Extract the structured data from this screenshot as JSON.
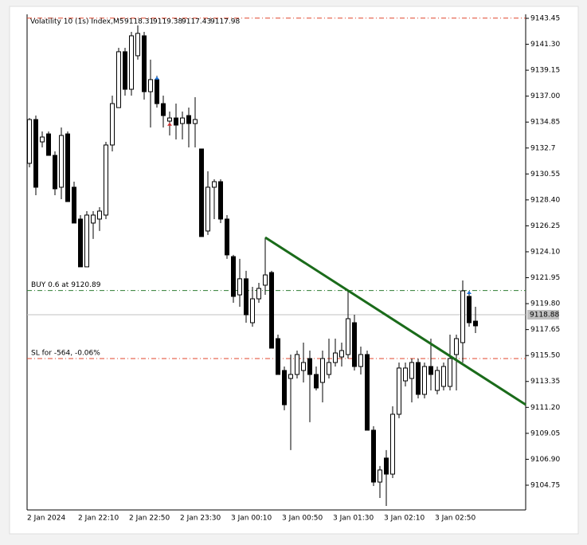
{
  "chart_data": {
    "type": "candlestick",
    "symbol": "Volatility 10 (1s) Index,M5",
    "ohlc": [
      9118.31,
      9119.38,
      9117.43,
      9117.98
    ],
    "categories": [
      "2 Jan 2024",
      null,
      null,
      null,
      null,
      null,
      null,
      null,
      "2 Jan 22:10",
      null,
      null,
      null,
      null,
      null,
      null,
      null,
      "2 Jan 22:50",
      null,
      null,
      null,
      null,
      null,
      null,
      null,
      "2 Jan 23:30",
      null,
      null,
      null,
      null,
      null,
      null,
      null,
      "3 Jan 00:10",
      null,
      null,
      null,
      null,
      null,
      null,
      null,
      "3 Jan 00:50",
      null,
      null,
      null,
      null,
      null,
      null,
      null,
      "3 Jan 01:30",
      null,
      null,
      null,
      null,
      null,
      null,
      null,
      "3 Jan 02:10",
      null,
      null,
      null,
      null,
      null,
      null,
      null,
      "3 Jan 02:50",
      null,
      null,
      null,
      null,
      null,
      null
    ],
    "open": [
      9131.43,
      9135.06,
      9133.21,
      9133.87,
      9132.09,
      9129.45,
      9133.87,
      9129.45,
      9126.81,
      9122.85,
      9126.48,
      9126.81,
      9127.14,
      9132.95,
      9136.05,
      9140.68,
      9137.57,
      9140.35,
      9142.0,
      9137.37,
      9138.37,
      9136.38,
      9134.93,
      9135.19,
      9134.73,
      9135.39,
      9134.73,
      9132.62,
      9125.82,
      9129.45,
      9129.91,
      9126.81,
      9123.7,
      9120.53,
      9121.86,
      9118.22,
      9120.2,
      9121.33,
      9122.38,
      9116.9,
      9114.26,
      9113.6,
      9113.93,
      9114.26,
      9115.25,
      9113.93,
      9113.27,
      9113.93,
      9114.92,
      9115.38,
      9115.58,
      9118.22,
      9114.59,
      9115.58,
      9109.31,
      9105.01,
      9107.0,
      9105.67,
      9110.63,
      9113.4,
      9113.6,
      9114.92,
      9112.28,
      9114.59,
      9112.61,
      9112.94,
      9112.94,
      9115.58,
      9116.57,
      9120.4,
      9118.35
    ],
    "high": [
      9135.19,
      9135.39,
      9134.07,
      9134.07,
      9132.42,
      9134.4,
      9134.07,
      9129.91,
      9127.14,
      9127.47,
      9127.47,
      9127.8,
      9133.21,
      9137.04,
      9141.01,
      9141.01,
      9142.33,
      9142.86,
      9142.33,
      9140.02,
      9138.69,
      9137.04,
      9135.72,
      9136.38,
      9135.72,
      9136.05,
      9136.91,
      9132.62,
      9130.77,
      9130.11,
      9130.11,
      9127.14,
      9123.84,
      9123.51,
      9122.52,
      9121.19,
      9121.52,
      9125.29,
      9122.52,
      9117.23,
      9114.59,
      9115.58,
      9115.91,
      9116.57,
      9115.91,
      9114.59,
      9115.91,
      9116.9,
      9116.9,
      9116.57,
      9120.86,
      9118.88,
      9116.24,
      9115.91,
      9109.64,
      9106.34,
      9107.66,
      9111.29,
      9114.92,
      9114.92,
      9115.25,
      9115.25,
      9114.92,
      9116.9,
      9114.59,
      9114.92,
      9117.23,
      9117.23,
      9121.72,
      9120.86,
      9119.54
    ],
    "low": [
      9131.1,
      9128.79,
      9132.75,
      9132.09,
      9128.79,
      9128.46,
      9128.26,
      9126.48,
      9122.85,
      9122.85,
      9125.16,
      9125.82,
      9126.81,
      9132.42,
      9136.05,
      9137.04,
      9137.04,
      9140.02,
      9136.71,
      9134.4,
      9136.05,
      9134.4,
      9133.74,
      9133.41,
      9133.41,
      9132.75,
      9132.75,
      9125.36,
      9125.49,
      9126.81,
      9126.48,
      9123.51,
      9119.87,
      9119.54,
      9118.22,
      9117.89,
      9119.87,
      9120.53,
      9116.11,
      9113.93,
      9110.96,
      9107.66,
      9113.6,
      9113.27,
      9109.97,
      9112.61,
      9111.62,
      9113.6,
      9114.59,
      9114.59,
      9115.25,
      9114.26,
      9113.93,
      9109.31,
      9104.68,
      9103.69,
      9103.03,
      9105.34,
      9110.3,
      9112.94,
      9111.62,
      9111.95,
      9111.95,
      9112.61,
      9112.28,
      9112.61,
      9112.61,
      9112.61,
      9114.92,
      9117.89,
      9117.36
    ],
    "close": [
      9135.06,
      9129.45,
      9133.61,
      9132.09,
      9129.32,
      9133.74,
      9128.26,
      9126.48,
      9122.85,
      9127.14,
      9127.14,
      9127.47,
      9132.95,
      9136.38,
      9140.68,
      9137.57,
      9142.0,
      9142.2,
      9137.37,
      9138.37,
      9136.38,
      9135.39,
      9135.19,
      9134.6,
      9135.19,
      9134.73,
      9135.06,
      9125.36,
      9129.45,
      9129.91,
      9126.81,
      9123.84,
      9120.4,
      9121.86,
      9118.88,
      9120.2,
      9121.06,
      9122.18,
      9116.11,
      9113.93,
      9111.42,
      9113.93,
      9115.58,
      9114.92,
      9113.93,
      9112.81,
      9115.25,
      9114.92,
      9115.71,
      9115.91,
      9118.55,
      9114.59,
      9115.58,
      9109.31,
      9105.01,
      9106.01,
      9105.67,
      9110.63,
      9114.46,
      9114.46,
      9114.92,
      9112.28,
      9114.59,
      9113.93,
      9114.26,
      9114.59,
      9115.25,
      9116.9,
      9120.86,
      9118.22,
      9117.96
    ],
    "up_color": "#ffffff",
    "down_color": "#000000",
    "wick_color": "#000000",
    "ylim": [
      9102.7,
      9143.78
    ],
    "yticks": [
      9143.45,
      {
        "value": 9141.3,
        "label": "9141.30"
      },
      9139.15,
      {
        "value": 9137,
        "label": "9137.00"
      },
      9134.85,
      9132.7,
      9130.55,
      {
        "value": 9128.4,
        "label": "9128.40"
      },
      9126.25,
      {
        "value": 9124.1,
        "label": "9124.10"
      },
      9121.95,
      {
        "value": 9119.8,
        "label": "9119.80"
      },
      9117.65,
      {
        "value": 9115.5,
        "label": "9115.50"
      },
      9113.35,
      {
        "value": 9111.2,
        "label": "9111.20"
      },
      9109.05,
      {
        "value": 9106.9,
        "label": "9106.90"
      },
      9104.75
    ],
    "price_lines": [
      {
        "label": "BUY 0.6 at 9120.89",
        "value": 9120.89,
        "color": "#2e7d32"
      },
      {
        "label": "SL for -564, -0.06%",
        "value": 9115.25,
        "color": "#e0452b"
      },
      {
        "value": 9143.47,
        "color": "#e0452b"
      }
    ],
    "bid": 9118.88,
    "bid_color": "#c0c0c0",
    "trendline": {
      "start_index": 37,
      "start_value": 9125.29,
      "end_index": 77.9,
      "end_value": 9111.42,
      "color": "#1a6b1a"
    },
    "trade_arrows": [
      {
        "index": 20,
        "value": 9138.37,
        "color": "#1e6fd0"
      },
      {
        "index": 22,
        "value": 9134.55,
        "color": "#d03030"
      },
      {
        "index": 69,
        "value": 9120.6,
        "color": "#1e6fd0"
      }
    ]
  }
}
